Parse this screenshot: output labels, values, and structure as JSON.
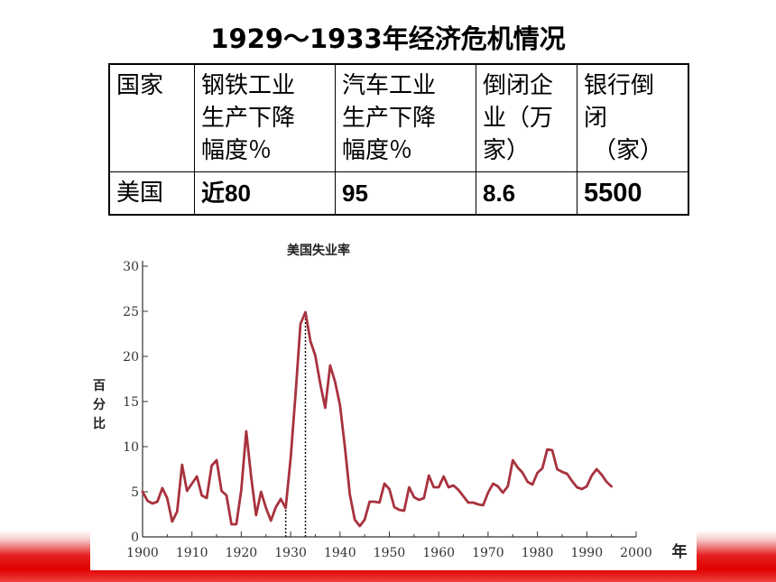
{
  "slide": {
    "title": "1929～1933年经济危机情况"
  },
  "table": {
    "headers": [
      [
        "国家"
      ],
      [
        "钢铁工业",
        "生产下降",
        "幅度％"
      ],
      [
        "汽车工业",
        "生产下降",
        "幅度％"
      ],
      [
        "倒闭企",
        "业（万",
        "家）"
      ],
      [
        "银行倒",
        "闭",
        "（家）"
      ]
    ],
    "row": [
      "美国",
      "近80",
      "95",
      "8.6",
      "5500"
    ]
  },
  "chart_data": {
    "type": "line",
    "title": "美国失业率",
    "ylabel": "百分比",
    "xlabel": "年",
    "xlim": [
      1900,
      2000
    ],
    "ylim": [
      0,
      30
    ],
    "xticks": [
      "1900",
      "1910",
      "1920",
      "1930",
      "1940",
      "1950",
      "1960",
      "1970",
      "1980",
      "1990",
      "2000"
    ],
    "yticks": [
      "0",
      "5",
      "10",
      "15",
      "20",
      "25",
      "30"
    ],
    "marker_years": [
      1929,
      1933
    ],
    "color": "#a8323e",
    "series": [
      {
        "x": [
          1900,
          1901,
          1902,
          1903,
          1904,
          1905,
          1906,
          1907,
          1908,
          1909,
          1910,
          1911,
          1912,
          1913,
          1914,
          1915,
          1916,
          1917,
          1918,
          1919,
          1920,
          1921,
          1922,
          1923,
          1924,
          1925,
          1926,
          1927,
          1928,
          1929,
          1930,
          1931,
          1932,
          1933,
          1934,
          1935,
          1936,
          1937,
          1938,
          1939,
          1940,
          1941,
          1942,
          1943,
          1944,
          1945,
          1946,
          1947,
          1948,
          1949,
          1950,
          1951,
          1952,
          1953,
          1954,
          1955,
          1956,
          1957,
          1958,
          1959,
          1960,
          1961,
          1962,
          1963,
          1964,
          1965,
          1966,
          1967,
          1968,
          1969,
          1970,
          1971,
          1972,
          1973,
          1974,
          1975,
          1976,
          1977,
          1978,
          1979,
          1980,
          1981,
          1982,
          1983,
          1984,
          1985,
          1986,
          1987,
          1988,
          1989,
          1990,
          1991,
          1992,
          1993,
          1994,
          1995
        ],
        "y": [
          5.0,
          4.0,
          3.7,
          3.9,
          5.4,
          4.3,
          1.7,
          2.8,
          8.0,
          5.1,
          5.9,
          6.7,
          4.6,
          4.3,
          7.9,
          8.5,
          5.1,
          4.6,
          1.4,
          1.4,
          5.2,
          11.7,
          6.7,
          2.4,
          5.0,
          3.2,
          1.8,
          3.3,
          4.2,
          3.2,
          8.7,
          15.9,
          23.6,
          24.9,
          21.7,
          20.1,
          17.0,
          14.3,
          19.0,
          17.2,
          14.6,
          9.9,
          4.7,
          1.9,
          1.2,
          1.9,
          3.9,
          3.9,
          3.8,
          5.9,
          5.3,
          3.3,
          3.0,
          2.9,
          5.5,
          4.4,
          4.1,
          4.3,
          6.8,
          5.5,
          5.5,
          6.7,
          5.5,
          5.7,
          5.2,
          4.5,
          3.8,
          3.8,
          3.6,
          3.5,
          4.9,
          5.9,
          5.6,
          4.9,
          5.6,
          8.5,
          7.7,
          7.1,
          6.1,
          5.8,
          7.1,
          7.6,
          9.7,
          9.6,
          7.5,
          7.2,
          7.0,
          6.2,
          5.5,
          5.3,
          5.6,
          6.8,
          7.5,
          6.9,
          6.1,
          5.6
        ]
      }
    ]
  }
}
